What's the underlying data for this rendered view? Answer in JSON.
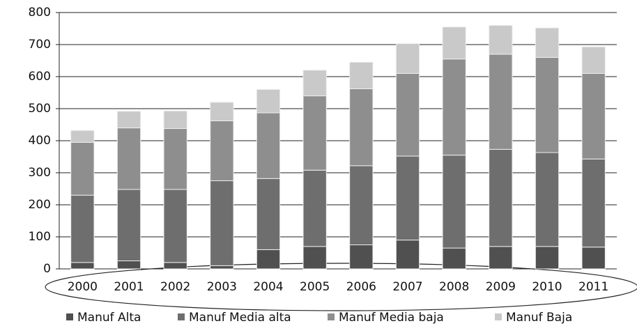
{
  "chart_data": {
    "type": "stacked_bar",
    "categories": [
      "2000",
      "2001",
      "2002",
      "2003",
      "2004",
      "2005",
      "2006",
      "2007",
      "2008",
      "2009",
      "2010",
      "2011"
    ],
    "series": [
      {
        "name": "Manuf Alta",
        "color": "#505050",
        "values": [
          20,
          25,
          20,
          10,
          60,
          70,
          75,
          90,
          65,
          70,
          70,
          68
        ]
      },
      {
        "name": "Manuf Media alta",
        "color": "#6e6e6e",
        "values": [
          210,
          223,
          228,
          265,
          222,
          238,
          247,
          262,
          290,
          303,
          293,
          275
        ]
      },
      {
        "name": "Manuf Media baja",
        "color": "#8e8e8e",
        "values": [
          165,
          192,
          190,
          187,
          205,
          232,
          240,
          258,
          300,
          297,
          297,
          267
        ]
      },
      {
        "name": "Manuf Baja",
        "color": "#c9c9c9",
        "values": [
          37,
          52,
          55,
          58,
          73,
          80,
          83,
          93,
          100,
          90,
          92,
          83
        ]
      }
    ],
    "ylim": [
      0,
      800
    ],
    "yticks": [
      0,
      100,
      200,
      300,
      400,
      500,
      600,
      700,
      800
    ],
    "grid": true,
    "legend": "bottom"
  }
}
